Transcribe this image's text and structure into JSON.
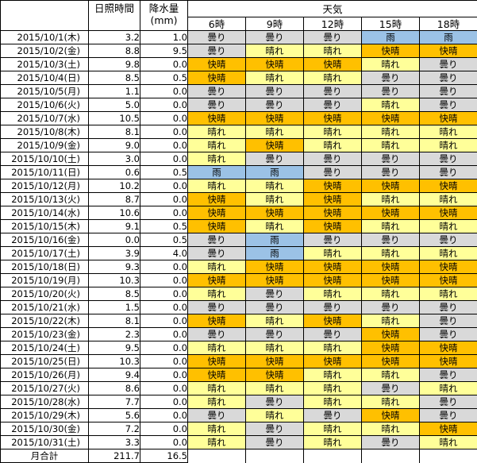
{
  "header": {
    "sunshine": "日照時間",
    "precip_label": "降水量",
    "precip_unit": "(mm)",
    "weather": "天気",
    "times": [
      "6時",
      "9時",
      "12時",
      "15時",
      "18時"
    ]
  },
  "colors": {
    "曇り": "#d9d9d9",
    "晴れ": "#ffff99",
    "快晴": "#ffc000",
    "雨": "#9bc2e6"
  },
  "rows": [
    {
      "date": "2015/10/1",
      "dow": "(木)",
      "sun": "3.2",
      "rain": "1.0",
      "w": [
        "曇り",
        "曇り",
        "曇り",
        "雨",
        "雨"
      ]
    },
    {
      "date": "2015/10/2",
      "dow": "(金)",
      "sun": "8.8",
      "rain": "9.5",
      "w": [
        "曇り",
        "晴れ",
        "晴れ",
        "快晴",
        "快晴"
      ]
    },
    {
      "date": "2015/10/3",
      "dow": "(土)",
      "sun": "9.8",
      "rain": "0.0",
      "w": [
        "快晴",
        "快晴",
        "快晴",
        "晴れ",
        "曇り"
      ]
    },
    {
      "date": "2015/10/4",
      "dow": "(日)",
      "sun": "8.5",
      "rain": "0.5",
      "w": [
        "快晴",
        "晴れ",
        "晴れ",
        "曇り",
        "曇り"
      ]
    },
    {
      "date": "2015/10/5",
      "dow": "(月)",
      "sun": "1.1",
      "rain": "0.0",
      "w": [
        "曇り",
        "曇り",
        "曇り",
        "曇り",
        "曇り"
      ]
    },
    {
      "date": "2015/10/6",
      "dow": "(火)",
      "sun": "5.0",
      "rain": "0.0",
      "w": [
        "曇り",
        "曇り",
        "曇り",
        "晴れ",
        "曇り"
      ]
    },
    {
      "date": "2015/10/7",
      "dow": "(水)",
      "sun": "10.5",
      "rain": "0.0",
      "w": [
        "快晴",
        "快晴",
        "快晴",
        "快晴",
        "快晴"
      ]
    },
    {
      "date": "2015/10/8",
      "dow": "(木)",
      "sun": "8.1",
      "rain": "0.0",
      "w": [
        "晴れ",
        "晴れ",
        "晴れ",
        "晴れ",
        "晴れ"
      ]
    },
    {
      "date": "2015/10/9",
      "dow": "(金)",
      "sun": "9.0",
      "rain": "0.0",
      "w": [
        "晴れ",
        "快晴",
        "晴れ",
        "晴れ",
        "晴れ"
      ]
    },
    {
      "date": "2015/10/10",
      "dow": "(土)",
      "sun": "3.0",
      "rain": "0.0",
      "w": [
        "晴れ",
        "曇り",
        "曇り",
        "曇り",
        "曇り"
      ]
    },
    {
      "date": "2015/10/11",
      "dow": "(日)",
      "sun": "0.6",
      "rain": "0.5",
      "w": [
        "雨",
        "雨",
        "曇り",
        "曇り",
        "曇り"
      ]
    },
    {
      "date": "2015/10/12",
      "dow": "(月)",
      "sun": "10.2",
      "rain": "0.0",
      "w": [
        "晴れ",
        "晴れ",
        "快晴",
        "快晴",
        "快晴"
      ]
    },
    {
      "date": "2015/10/13",
      "dow": "(火)",
      "sun": "8.7",
      "rain": "0.0",
      "w": [
        "快晴",
        "晴れ",
        "快晴",
        "晴れ",
        "晴れ"
      ]
    },
    {
      "date": "2015/10/14",
      "dow": "(水)",
      "sun": "10.6",
      "rain": "0.0",
      "w": [
        "快晴",
        "快晴",
        "快晴",
        "快晴",
        "快晴"
      ]
    },
    {
      "date": "2015/10/15",
      "dow": "(木)",
      "sun": "9.1",
      "rain": "0.5",
      "w": [
        "快晴",
        "晴れ",
        "快晴",
        "晴れ",
        "晴れ"
      ]
    },
    {
      "date": "2015/10/16",
      "dow": "(金)",
      "sun": "0.0",
      "rain": "0.5",
      "w": [
        "曇り",
        "雨",
        "曇り",
        "曇り",
        "曇り"
      ]
    },
    {
      "date": "2015/10/17",
      "dow": "(土)",
      "sun": "3.9",
      "rain": "4.0",
      "w": [
        "曇り",
        "雨",
        "晴れ",
        "晴れ",
        "晴れ"
      ]
    },
    {
      "date": "2015/10/18",
      "dow": "(日)",
      "sun": "9.3",
      "rain": "0.0",
      "w": [
        "晴れ",
        "快晴",
        "快晴",
        "快晴",
        "快晴"
      ]
    },
    {
      "date": "2015/10/19",
      "dow": "(月)",
      "sun": "10.3",
      "rain": "0.0",
      "w": [
        "快晴",
        "快晴",
        "快晴",
        "快晴",
        "快晴"
      ]
    },
    {
      "date": "2015/10/20",
      "dow": "(火)",
      "sun": "8.5",
      "rain": "0.0",
      "w": [
        "晴れ",
        "曇り",
        "晴れ",
        "晴れ",
        "晴れ"
      ]
    },
    {
      "date": "2015/10/21",
      "dow": "(水)",
      "sun": "1.5",
      "rain": "0.0",
      "w": [
        "曇り",
        "曇り",
        "曇り",
        "曇り",
        "曇り"
      ]
    },
    {
      "date": "2015/10/22",
      "dow": "(木)",
      "sun": "8.1",
      "rain": "0.0",
      "w": [
        "快晴",
        "晴れ",
        "快晴",
        "晴れ",
        "曇り"
      ]
    },
    {
      "date": "2015/10/23",
      "dow": "(金)",
      "sun": "2.3",
      "rain": "0.0",
      "w": [
        "曇り",
        "曇り",
        "曇り",
        "快晴",
        "曇り"
      ]
    },
    {
      "date": "2015/10/24",
      "dow": "(土)",
      "sun": "9.5",
      "rain": "0.0",
      "w": [
        "晴れ",
        "晴れ",
        "晴れ",
        "快晴",
        "快晴"
      ]
    },
    {
      "date": "2015/10/25",
      "dow": "(日)",
      "sun": "10.3",
      "rain": "0.0",
      "w": [
        "快晴",
        "快晴",
        "快晴",
        "快晴",
        "快晴"
      ]
    },
    {
      "date": "2015/10/26",
      "dow": "(月)",
      "sun": "9.4",
      "rain": "0.0",
      "w": [
        "快晴",
        "快晴",
        "晴れ",
        "晴れ",
        "曇り"
      ]
    },
    {
      "date": "2015/10/27",
      "dow": "(火)",
      "sun": "8.6",
      "rain": "0.0",
      "w": [
        "晴れ",
        "晴れ",
        "晴れ",
        "曇り",
        "晴れ"
      ]
    },
    {
      "date": "2015/10/28",
      "dow": "(水)",
      "sun": "7.7",
      "rain": "0.0",
      "w": [
        "晴れ",
        "曇り",
        "晴れ",
        "晴れ",
        "曇り"
      ]
    },
    {
      "date": "2015/10/29",
      "dow": "(木)",
      "sun": "5.6",
      "rain": "0.0",
      "w": [
        "曇り",
        "晴れ",
        "曇り",
        "快晴",
        "曇り"
      ]
    },
    {
      "date": "2015/10/30",
      "dow": "(金)",
      "sun": "7.2",
      "rain": "0.0",
      "w": [
        "晴れ",
        "曇り",
        "晴れ",
        "晴れ",
        "快晴"
      ]
    },
    {
      "date": "2015/10/31",
      "dow": "(土)",
      "sun": "3.3",
      "rain": "0.0",
      "w": [
        "晴れ",
        "曇り",
        "晴れ",
        "曇り",
        "晴れ"
      ]
    }
  ],
  "total": {
    "label": "月合計",
    "sun": "211.7",
    "rain": "16.5"
  }
}
